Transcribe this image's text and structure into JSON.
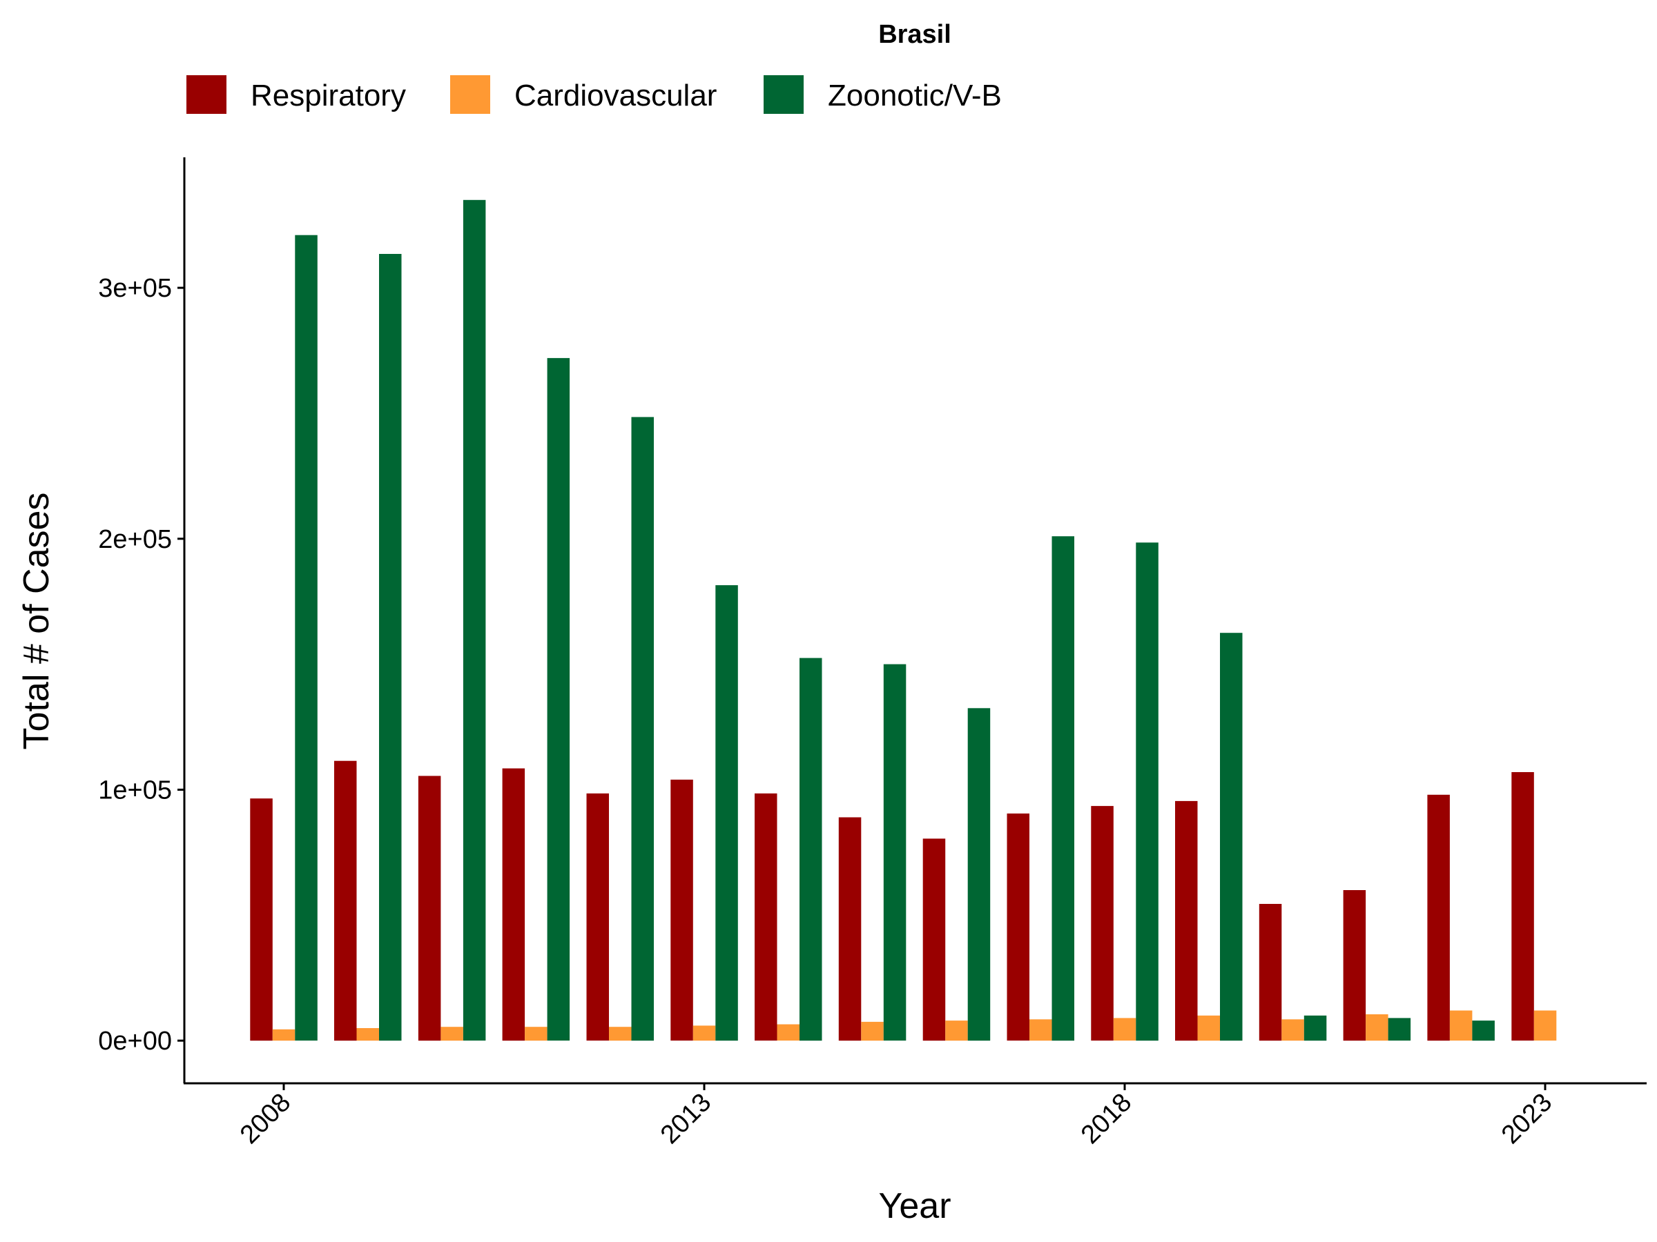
{
  "chart_data": {
    "type": "bar",
    "title": "Brasil",
    "xlabel": "Year",
    "ylabel": "Total # of Cases",
    "x": [
      2008,
      2009,
      2010,
      2011,
      2012,
      2013,
      2014,
      2015,
      2016,
      2017,
      2018,
      2019,
      2020,
      2021,
      2022,
      2023
    ],
    "x_ticks": [
      "2008",
      "2013",
      "2018",
      "2023"
    ],
    "y_ticks": [
      "0e+00",
      "1e+05",
      "2e+05",
      "3e+05"
    ],
    "y_tick_values": [
      0,
      100000,
      200000,
      300000
    ],
    "ylim": [
      -17000,
      352000
    ],
    "legend_position": "top",
    "grid": false,
    "series": [
      {
        "name": "Respiratory",
        "color": "#990000",
        "values": [
          96500,
          111500,
          105500,
          108500,
          98500,
          104000,
          98500,
          89000,
          80500,
          90500,
          93500,
          95500,
          54500,
          60000,
          98000,
          107000
        ]
      },
      {
        "name": "Cardiovascular",
        "color": "#FF9933",
        "values": [
          4500,
          5000,
          5500,
          5500,
          5500,
          6000,
          6500,
          7500,
          8000,
          8500,
          9000,
          10000,
          8500,
          10500,
          12000,
          12000
        ]
      },
      {
        "name": "Zoonotic/V-B",
        "color": "#006633",
        "values": [
          321000,
          313500,
          335000,
          272000,
          248500,
          181500,
          152500,
          150000,
          132500,
          201000,
          198500,
          162500,
          10000,
          9000,
          8000,
          null
        ]
      }
    ]
  }
}
